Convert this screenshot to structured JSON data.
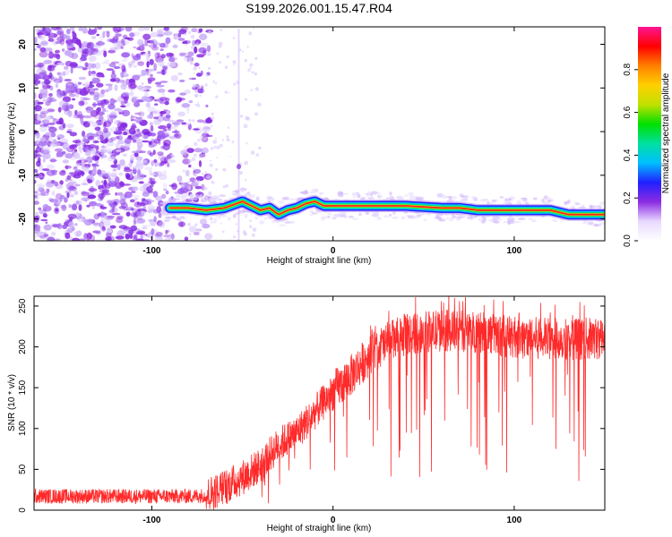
{
  "title": "S199.2026.001.15.47.R04",
  "chart_data": [
    {
      "type": "heatmap",
      "name": "spectrogram",
      "xlabel": "Height of straight line (km)",
      "ylabel": "Frequency (Hz)",
      "xlim": [
        -165,
        150
      ],
      "ylim": [
        -25,
        24
      ],
      "xticks": [
        -100,
        0,
        100
      ],
      "yticks": [
        20,
        10,
        0,
        -10,
        -20
      ],
      "noise_region_x": [
        -165,
        -80
      ],
      "signal_ridge": {
        "x": [
          -90,
          -80,
          -70,
          -60,
          -50,
          -45,
          -40,
          -35,
          -30,
          -25,
          -20,
          -15,
          -10,
          -5,
          0,
          20,
          40,
          60,
          70,
          80,
          100,
          120,
          130,
          140,
          150
        ],
        "y": [
          -17.5,
          -17.5,
          -18.0,
          -17.5,
          -16.0,
          -17.0,
          -18.0,
          -17.5,
          -19.0,
          -18.0,
          -17.5,
          -16.5,
          -16.0,
          -17.0,
          -17.0,
          -17.0,
          -17.0,
          -17.5,
          -17.5,
          -18.0,
          -18.0,
          -18.0,
          -19.0,
          -19.0,
          -19.0
        ]
      },
      "colorbar": {
        "label": "Normalized spectral amplitude",
        "range": [
          0,
          1
        ],
        "ticks": [
          "0.0",
          "0.2",
          "0.4",
          "0.6",
          "0.8"
        ],
        "colors": [
          "#ffffff",
          "#e8d8ff",
          "#8b2be2",
          "#2020ff",
          "#00c0ff",
          "#00e0a0",
          "#00e000",
          "#c0e000",
          "#ffd000",
          "#ff8000",
          "#ff0000",
          "#ff1493"
        ]
      }
    },
    {
      "type": "line",
      "name": "snr",
      "xlabel": "Height of straight line (km)",
      "ylabel": "SNR (10 * v/v)",
      "xlim": [
        -165,
        150
      ],
      "ylim": [
        0,
        262
      ],
      "xticks": [
        -100,
        0,
        100
      ],
      "yticks": [
        0,
        50,
        100,
        150,
        200,
        250
      ],
      "color": "#ff2a2a",
      "trend": {
        "x": [
          -165,
          -80,
          -70,
          -60,
          -50,
          -40,
          -30,
          -20,
          -10,
          0,
          10,
          20,
          30,
          40,
          60,
          80,
          100,
          120,
          150
        ],
        "y": [
          17,
          17,
          18,
          28,
          40,
          55,
          80,
          95,
          120,
          145,
          165,
          190,
          205,
          215,
          220,
          218,
          212,
          210,
          210
        ]
      }
    }
  ]
}
